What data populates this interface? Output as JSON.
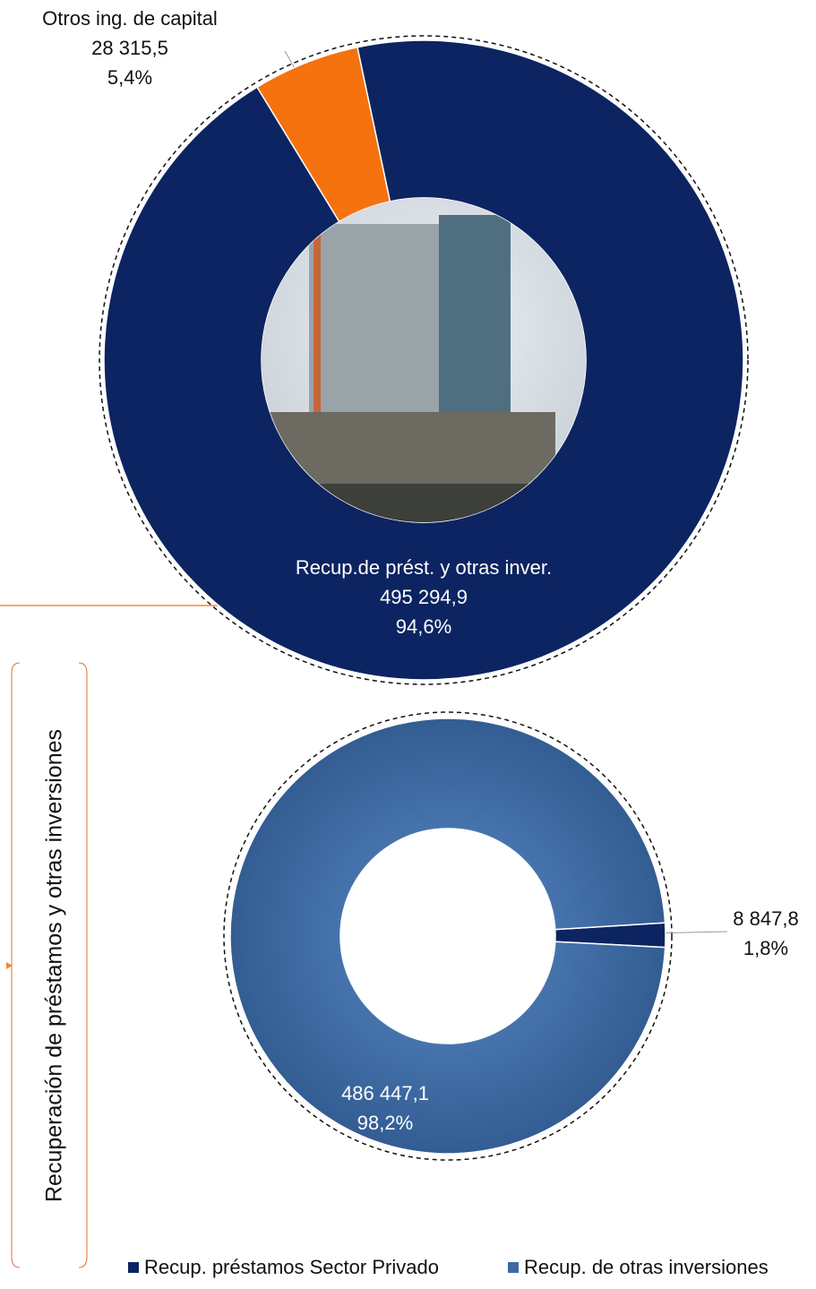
{
  "chart_data": [
    {
      "type": "donut",
      "categories": [
        "Otros ing. de capital",
        "Recup.de prést. y otras inver."
      ],
      "values": [
        28315.5,
        495294.9
      ],
      "value_labels": [
        "28 315,5",
        "495 294,9"
      ],
      "percentages": [
        5.4,
        94.6
      ],
      "percentage_labels": [
        "5,4%",
        "94,6%"
      ],
      "colors": [
        "#f5720f",
        "#0c2461"
      ]
    },
    {
      "type": "donut",
      "title": "Recuperación de préstamos y otras inversiones",
      "categories": [
        "Recup. préstamos Sector Privado",
        "Recup. de otras inversiones"
      ],
      "values": [
        8847.8,
        486447.1
      ],
      "value_labels": [
        "8 847,8",
        "486 447,1"
      ],
      "percentages": [
        1.8,
        98.2
      ],
      "percentage_labels": [
        "1,8%",
        "98,2%"
      ],
      "colors": [
        "#0c2461",
        "#3d6aa5"
      ],
      "legend": "bottom"
    }
  ]
}
